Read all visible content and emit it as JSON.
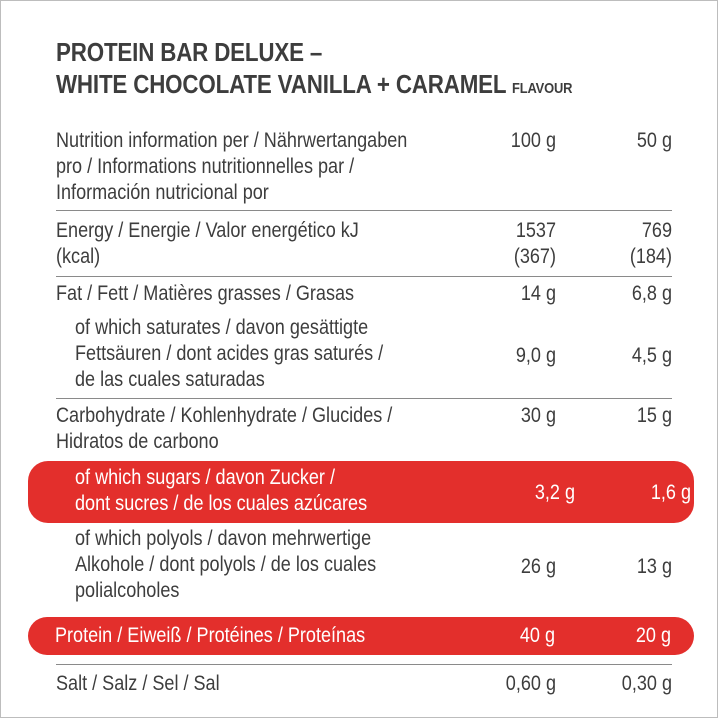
{
  "title": {
    "line1": "PROTEIN BAR DELUXE –",
    "line2": "WHITE CHOCOLATE VANILLA + CARAMEL",
    "flavour": "FLAVOUR"
  },
  "header": {
    "label": "Nutrition information per / Nährwertangaben\npro / Informations nutritionnelles par /\nInformación nutricional por",
    "col100": "100 g",
    "col50": "50 g"
  },
  "rows": [
    {
      "label": "Energy / Energie / Valor energético kJ\n(kcal)",
      "v100": "1537\n(367)",
      "v50": "769\n(184)"
    },
    {
      "label": "Fat / Fett / Matières grasses / Grasas",
      "v100": "14 g",
      "v50": "6,8 g"
    },
    {
      "label": "of which saturates / davon gesättigte\nFettsäuren / dont acides gras saturés /\nde las cuales saturadas",
      "v100": "9,0 g",
      "v50": "4,5 g"
    },
    {
      "label": "Carbohydrate / Kohlenhydrate / Glucides /\nHidratos de carbono",
      "v100": "30 g",
      "v50": "15 g"
    },
    {
      "label": "of which sugars / davon Zucker /\ndont sucres / de los cuales azúcares",
      "v100": "3,2 g",
      "v50": "1,6 g"
    },
    {
      "label": "of which polyols / davon mehrwertige\nAlkohole / dont polyols / de los cuales\npolialcoholes",
      "v100": "26 g",
      "v50": "13 g"
    },
    {
      "label": "Protein / Eiweiß / Protéines / Proteínas",
      "v100": "40 g",
      "v50": "20 g"
    },
    {
      "label": "Salt / Salz / Sel / Sal",
      "v100": "0,60 g",
      "v50": "0,30 g"
    }
  ],
  "colors": {
    "highlight": "#e32f2c",
    "text": "#3d3d3d",
    "rule": "#8a8a8a"
  }
}
